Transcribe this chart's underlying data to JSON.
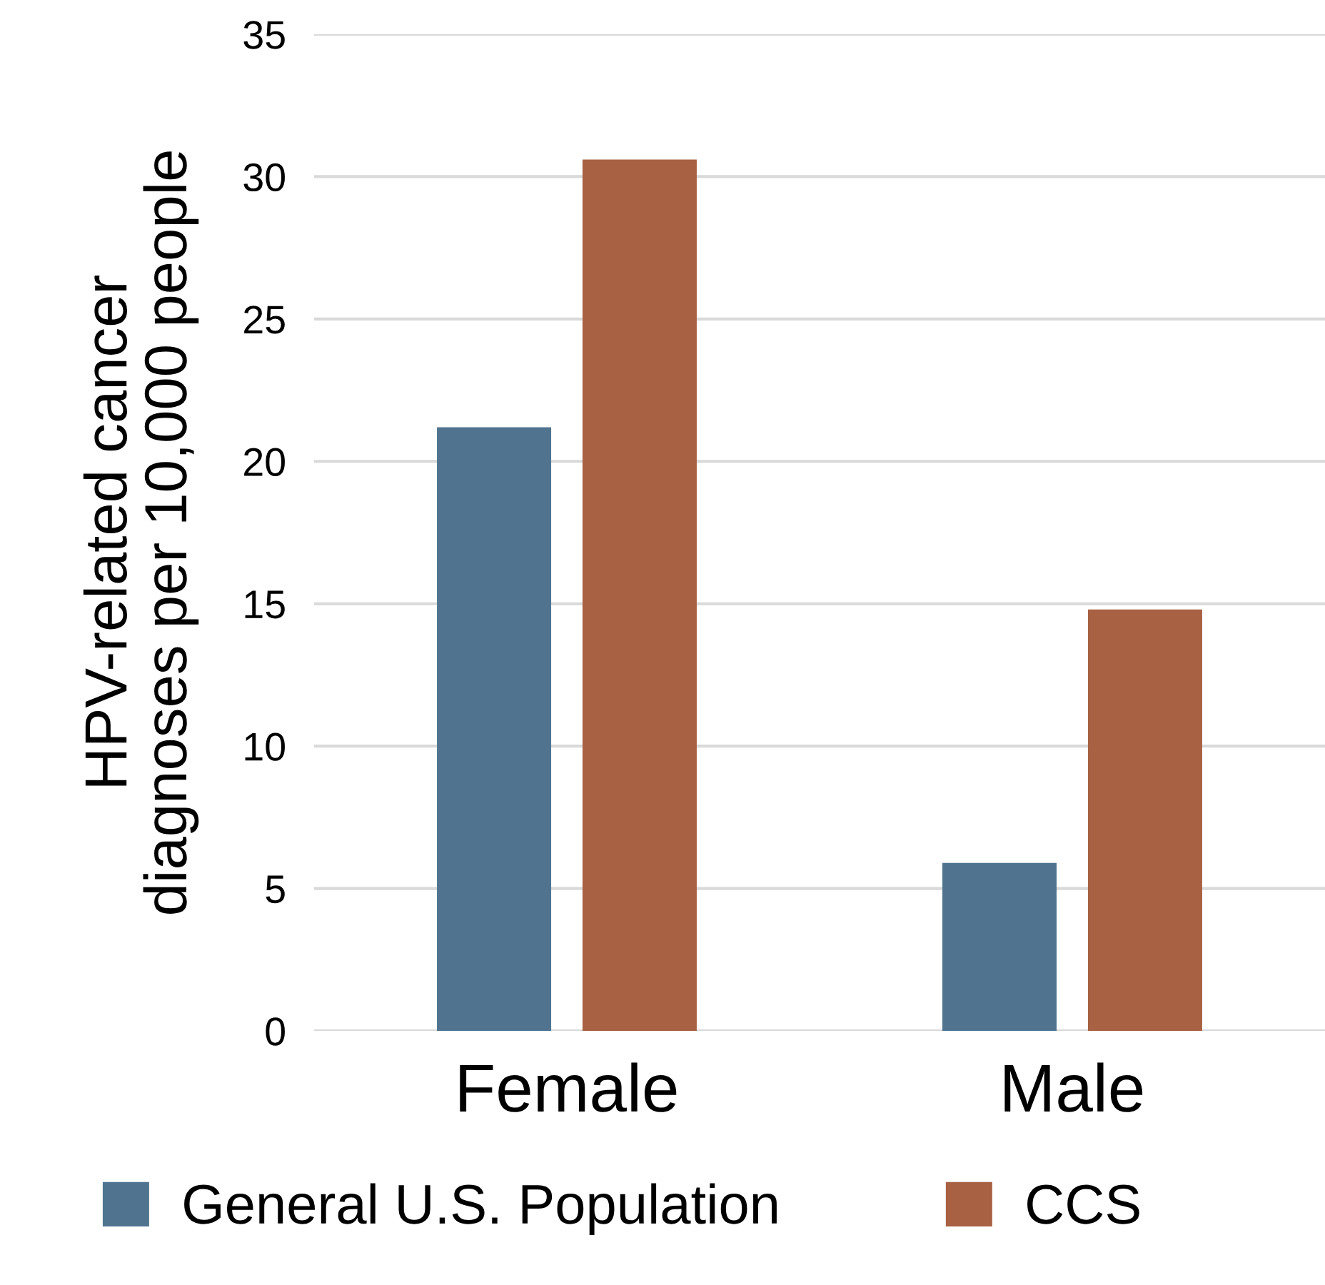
{
  "chart_data": {
    "type": "bar",
    "ylabel": "HPV-related cancer\ndiagnoses per 10,000 people",
    "categories": [
      "Female",
      "Male"
    ],
    "series": [
      {
        "name": "General U.S. Population",
        "color": "#50748f",
        "values": [
          21.2,
          5.9
        ]
      },
      {
        "name": "CCS",
        "color": "#a86143",
        "values": [
          30.6,
          14.8
        ]
      }
    ],
    "ylim": [
      0,
      35
    ],
    "yticks": [
      0,
      5,
      10,
      15,
      20,
      25,
      30,
      35
    ],
    "grid": "y",
    "legend": "bottom"
  }
}
